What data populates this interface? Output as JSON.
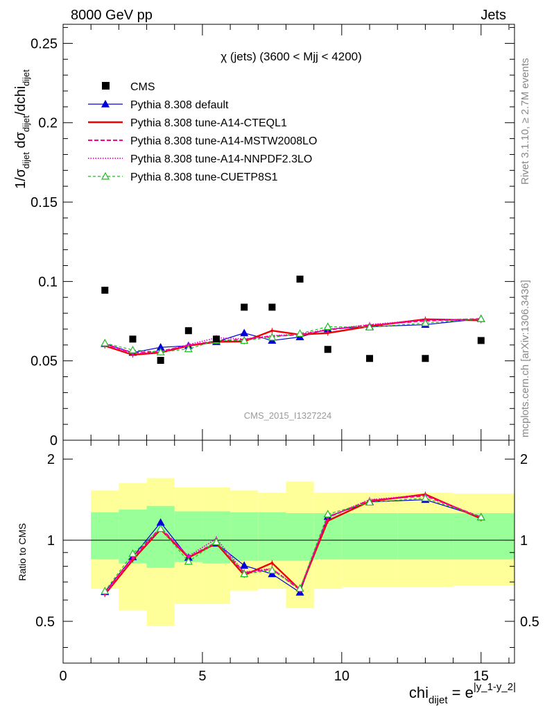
{
  "header": {
    "left": "8000 GeV pp",
    "right": "Jets"
  },
  "side_labels": {
    "rivet": "Rivet 3.1.10, ≥ 2.7M events",
    "mcplots": "mcplots.cern.ch [arXiv:1306.3436]"
  },
  "chart_data": {
    "type": "line",
    "title": "χ (jets) (3600 < Mjj < 4200)",
    "watermark": "CMS_2015_I1327224",
    "xlabel": "chi_dijet = e^{|y_1-y_2|}",
    "ylabel": "1/σ_dijet dσ_dijet/dchi_dijet",
    "ratio_ylabel": "Ratio to CMS",
    "xlim": [
      0,
      16.2
    ],
    "ylim": [
      0,
      0.262
    ],
    "ratio_ylim": [
      0.35,
      2.35
    ],
    "x_ticks": [
      "0",
      "5",
      "10",
      "15"
    ],
    "y_ticks": [
      "0",
      "0.05",
      "0.1",
      "0.15",
      "0.2",
      "0.25"
    ],
    "ratio_ticks": [
      "0.5",
      "1",
      "2"
    ],
    "legend_position": "top-left",
    "bin_edges": [
      1,
      2,
      3,
      4,
      5,
      6,
      7,
      8,
      9,
      10,
      12,
      14,
      16.2
    ],
    "x": [
      1.5,
      2.5,
      3.5,
      4.5,
      5.5,
      6.5,
      7.5,
      8.5,
      9.5,
      11,
      13,
      15
    ],
    "data": {
      "name": "CMS",
      "values": [
        0.0945,
        0.0637,
        0.0503,
        0.069,
        0.0637,
        0.0838,
        0.0838,
        0.1015,
        0.0572,
        0.0515,
        0.0515,
        0.0628
      ],
      "band_inner": [
        [
          0.85,
          1.27
        ],
        [
          0.82,
          1.3
        ],
        [
          0.79,
          1.34
        ],
        [
          0.83,
          1.28
        ],
        [
          0.82,
          1.28
        ],
        [
          0.84,
          1.27
        ],
        [
          0.84,
          1.27
        ],
        [
          0.84,
          1.26
        ],
        [
          0.85,
          1.26
        ],
        [
          0.85,
          1.26
        ],
        [
          0.85,
          1.26
        ],
        [
          0.85,
          1.26
        ]
      ],
      "band_outer": [
        [
          0.66,
          1.53
        ],
        [
          0.55,
          1.63
        ],
        [
          0.48,
          1.7
        ],
        [
          0.58,
          1.57
        ],
        [
          0.58,
          1.57
        ],
        [
          0.65,
          1.53
        ],
        [
          0.66,
          1.5
        ],
        [
          0.56,
          1.65
        ],
        [
          0.66,
          1.5
        ],
        [
          0.67,
          1.5
        ],
        [
          0.67,
          1.5
        ],
        [
          0.68,
          1.49
        ]
      ]
    },
    "series": [
      {
        "name": "Pythia 8.308 default",
        "color": "#0000dd",
        "dash": "",
        "marker": "triangle-filled",
        "width": 1.2,
        "values": [
          0.0608,
          0.0552,
          0.0585,
          0.0595,
          0.062,
          0.0675,
          0.0628,
          0.065,
          0.07,
          0.0715,
          0.0728,
          0.0765
        ]
      },
      {
        "name": "Pythia 8.308 tune-A14-CTEQL1",
        "color": "#ee0000",
        "dash": "",
        "marker": "none",
        "width": 2.4,
        "values": [
          0.0595,
          0.0538,
          0.0552,
          0.0595,
          0.062,
          0.0622,
          0.069,
          0.0665,
          0.0675,
          0.0718,
          0.0762,
          0.0755
        ]
      },
      {
        "name": "Pythia 8.308 tune-A14-MSTW2008LO",
        "color": "#ff0080",
        "dash": "6,3",
        "marker": "none",
        "width": 2,
        "values": [
          0.0605,
          0.055,
          0.056,
          0.0598,
          0.0625,
          0.0635,
          0.0655,
          0.0665,
          0.0695,
          0.0725,
          0.0752,
          0.0765
        ]
      },
      {
        "name": "Pythia 8.308 tune-A14-NNPDF2.3LO",
        "color": "#ee00cc",
        "dash": "1.5,2",
        "marker": "none",
        "width": 1.8,
        "values": [
          0.0598,
          0.0545,
          0.0555,
          0.0602,
          0.0645,
          0.0638,
          0.0658,
          0.0668,
          0.0698,
          0.0728,
          0.0758,
          0.0762
        ]
      },
      {
        "name": "Pythia 8.308 tune-CUETP8S1",
        "color": "#22bb22",
        "dash": "4,3",
        "marker": "triangle-open",
        "width": 1.2,
        "values": [
          0.0612,
          0.0568,
          0.0555,
          0.0575,
          0.0628,
          0.0628,
          0.0648,
          0.0672,
          0.0715,
          0.0712,
          0.0738,
          0.0765
        ]
      }
    ]
  }
}
